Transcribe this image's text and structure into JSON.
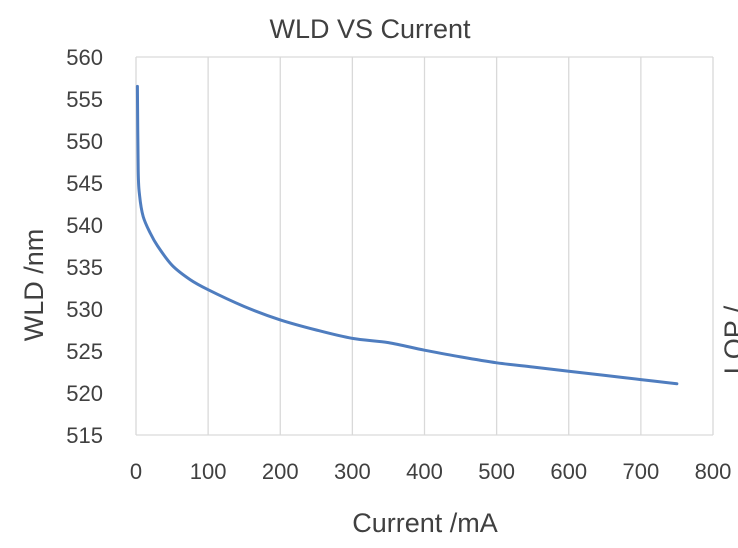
{
  "chart_data": {
    "type": "line",
    "title": "WLD VS Current",
    "xlabel": "Current /mA",
    "ylabel": "WLD /nm",
    "xlim": [
      0,
      800
    ],
    "ylim": [
      515,
      560
    ],
    "x_ticks": [
      0,
      100,
      200,
      300,
      400,
      500,
      600,
      700,
      800
    ],
    "y_ticks": [
      515,
      520,
      525,
      530,
      535,
      540,
      545,
      550,
      555,
      560
    ],
    "grid": {
      "vertical": true,
      "horizontal": false
    },
    "legend": "none",
    "series": [
      {
        "color": "#4f7dbf",
        "x": [
          2,
          3,
          5,
          10,
          20,
          30,
          50,
          75,
          100,
          150,
          200,
          250,
          300,
          350,
          400,
          450,
          500,
          550,
          600,
          650,
          700,
          750
        ],
        "y": [
          556.5,
          546.5,
          543.5,
          541.0,
          539.0,
          537.5,
          535.2,
          533.5,
          532.3,
          530.3,
          528.7,
          527.5,
          526.5,
          526.0,
          525.1,
          524.3,
          523.6,
          523.1,
          522.6,
          522.1,
          521.6,
          521.1
        ]
      }
    ]
  },
  "cropped_secondary_axis": "LOP /"
}
